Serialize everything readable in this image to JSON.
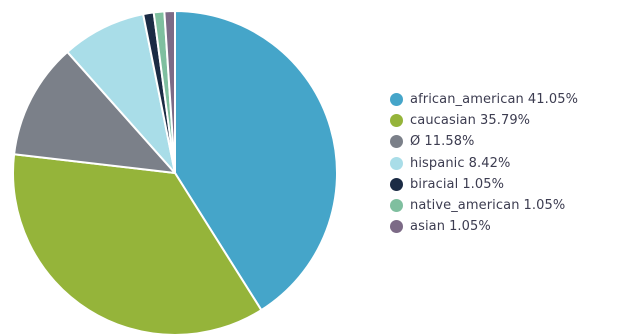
{
  "chart_data": {
    "type": "pie",
    "slices": [
      {
        "label": "african_american",
        "value": 41.05,
        "display": "41.05%",
        "color": "#45a5c9"
      },
      {
        "label": "caucasian",
        "value": 35.79,
        "display": "35.79%",
        "color": "#95b43a"
      },
      {
        "label": "Ø",
        "value": 11.58,
        "display": "11.58%",
        "color": "#7b8089"
      },
      {
        "label": "hispanic",
        "value": 8.42,
        "display": "8.42%",
        "color": "#a9dde8"
      },
      {
        "label": "biracial",
        "value": 1.05,
        "display": "1.05%",
        "color": "#1b2b44"
      },
      {
        "label": "native_american",
        "value": 1.05,
        "display": "1.05%",
        "color": "#7fbf9f"
      },
      {
        "label": "asian",
        "value": 1.05,
        "display": "1.05%",
        "color": "#7c6a86"
      }
    ],
    "start_angle_deg": 0,
    "direction": "clockwise",
    "legend_position": "right"
  }
}
